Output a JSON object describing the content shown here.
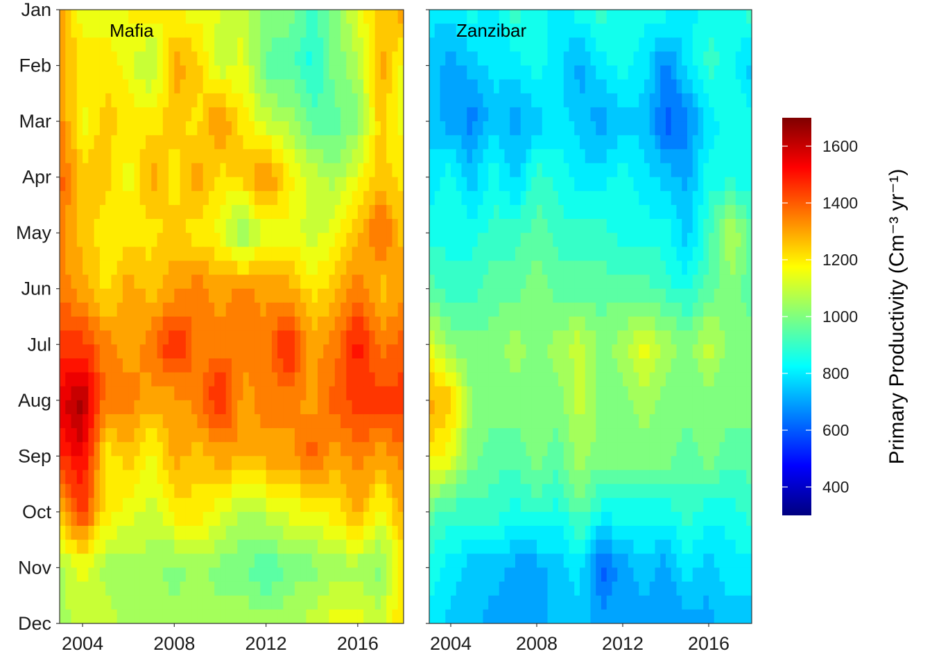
{
  "chart_data": {
    "type": "heatmap",
    "x": [
      2003,
      2004,
      2005,
      2006,
      2007,
      2008,
      2009,
      2010,
      2011,
      2012,
      2013,
      2014,
      2015,
      2016,
      2017,
      2018
    ],
    "x_ticks": [
      "2004",
      "2008",
      "2012",
      "2016"
    ],
    "x_tick_values": [
      2004,
      2008,
      2012,
      2016
    ],
    "xlim": [
      2003,
      2018
    ],
    "y_ticks": [
      "Jan",
      "Feb",
      "Mar",
      "Apr",
      "May",
      "Jun",
      "Jul",
      "Aug",
      "Sep",
      "Oct",
      "Nov",
      "Dec"
    ],
    "panels": [
      {
        "label": "Mafia",
        "values": [
          [
            1300,
            1150,
            1150,
            1180,
            1200,
            1180,
            1150,
            1130,
            1100,
            1020,
            1000,
            920,
            1000,
            1150,
            1250,
            1300
          ],
          [
            1300,
            1200,
            1200,
            1150,
            1050,
            1300,
            1250,
            1080,
            1150,
            950,
            950,
            850,
            1000,
            1050,
            1300,
            1150
          ],
          [
            1350,
            1150,
            1250,
            1200,
            1200,
            1250,
            1200,
            1350,
            1200,
            1100,
            1050,
            950,
            950,
            1000,
            1250,
            1150
          ],
          [
            1400,
            1250,
            1250,
            1150,
            1300,
            1200,
            1300,
            1200,
            1250,
            1350,
            1200,
            1100,
            1050,
            1150,
            1250,
            1200
          ],
          [
            1350,
            1250,
            1200,
            1200,
            1200,
            1250,
            1200,
            1150,
            1000,
            1150,
            1150,
            1100,
            1150,
            1250,
            1400,
            1250
          ],
          [
            1350,
            1300,
            1200,
            1300,
            1250,
            1300,
            1350,
            1300,
            1350,
            1300,
            1300,
            1200,
            1250,
            1350,
            1250,
            1300
          ],
          [
            1450,
            1450,
            1350,
            1300,
            1350,
            1500,
            1350,
            1350,
            1350,
            1350,
            1500,
            1300,
            1350,
            1500,
            1350,
            1400
          ],
          [
            1550,
            1650,
            1350,
            1350,
            1300,
            1300,
            1350,
            1500,
            1300,
            1350,
            1350,
            1300,
            1400,
            1450,
            1450,
            1450
          ],
          [
            1450,
            1550,
            1200,
            1250,
            1150,
            1300,
            1250,
            1300,
            1300,
            1300,
            1300,
            1400,
            1300,
            1350,
            1300,
            1350
          ],
          [
            1250,
            1450,
            1200,
            1150,
            1100,
            1200,
            1200,
            1150,
            1050,
            1100,
            1150,
            1150,
            1200,
            1300,
            1150,
            1300
          ],
          [
            1050,
            1150,
            1050,
            1050,
            1050,
            1000,
            1050,
            1000,
            1000,
            900,
            1000,
            1000,
            1050,
            1050,
            1000,
            1200
          ],
          [
            1050,
            1100,
            1100,
            1050,
            1050,
            1050,
            1050,
            1050,
            1050,
            1050,
            1050,
            1100,
            1150,
            1150,
            1100,
            1250
          ]
        ]
      },
      {
        "label": "Zanzibar",
        "values": [
          [
            800,
            800,
            850,
            800,
            900,
            850,
            800,
            850,
            900,
            850,
            850,
            850,
            800,
            850,
            850,
            900
          ],
          [
            750,
            700,
            750,
            800,
            800,
            850,
            800,
            700,
            800,
            850,
            800,
            650,
            800,
            900,
            850,
            750
          ],
          [
            750,
            700,
            650,
            750,
            700,
            750,
            800,
            750,
            700,
            750,
            750,
            600,
            650,
            800,
            850,
            850
          ],
          [
            800,
            850,
            750,
            850,
            750,
            900,
            850,
            800,
            800,
            850,
            800,
            750,
            700,
            850,
            850,
            850
          ],
          [
            850,
            850,
            850,
            900,
            900,
            950,
            900,
            900,
            900,
            850,
            850,
            850,
            750,
            900,
            1100,
            950
          ],
          [
            950,
            900,
            900,
            950,
            950,
            1000,
            950,
            950,
            950,
            950,
            950,
            900,
            850,
            950,
            1000,
            950
          ],
          [
            1150,
            1000,
            1000,
            1000,
            1050,
            1000,
            1050,
            1100,
            1000,
            1050,
            1150,
            1050,
            1000,
            1100,
            1000,
            1000
          ],
          [
            1300,
            1250,
            1000,
            1000,
            1000,
            1000,
            1000,
            1100,
            1000,
            1000,
            1050,
            1000,
            1000,
            1000,
            1000,
            1000
          ],
          [
            1200,
            1150,
            1000,
            950,
            950,
            1000,
            950,
            1050,
            1000,
            1000,
            1000,
            1000,
            950,
            1000,
            950,
            950
          ],
          [
            950,
            900,
            900,
            900,
            850,
            900,
            850,
            950,
            850,
            850,
            850,
            850,
            900,
            850,
            850,
            900
          ],
          [
            850,
            800,
            750,
            750,
            700,
            700,
            750,
            800,
            600,
            700,
            750,
            700,
            800,
            750,
            800,
            800
          ],
          [
            800,
            750,
            750,
            700,
            700,
            700,
            750,
            750,
            700,
            700,
            700,
            700,
            700,
            700,
            750,
            750
          ]
        ]
      }
    ],
    "colorbar": {
      "title": "Primary Productivity (Cm⁻³ yr⁻¹)",
      "range": [
        300,
        1700
      ],
      "ticks": [
        400,
        600,
        800,
        1000,
        1200,
        1400,
        1600
      ],
      "tick_labels": [
        "400",
        "600",
        "800",
        "1000",
        "1200",
        "1400",
        "1600"
      ],
      "colormap": [
        "#00007F",
        "#0000FF",
        "#007FFF",
        "#00FFFF",
        "#7FFF7F",
        "#FFFF00",
        "#FF7F00",
        "#FF0000",
        "#7F0000"
      ],
      "placement": "right"
    },
    "grid": false
  }
}
